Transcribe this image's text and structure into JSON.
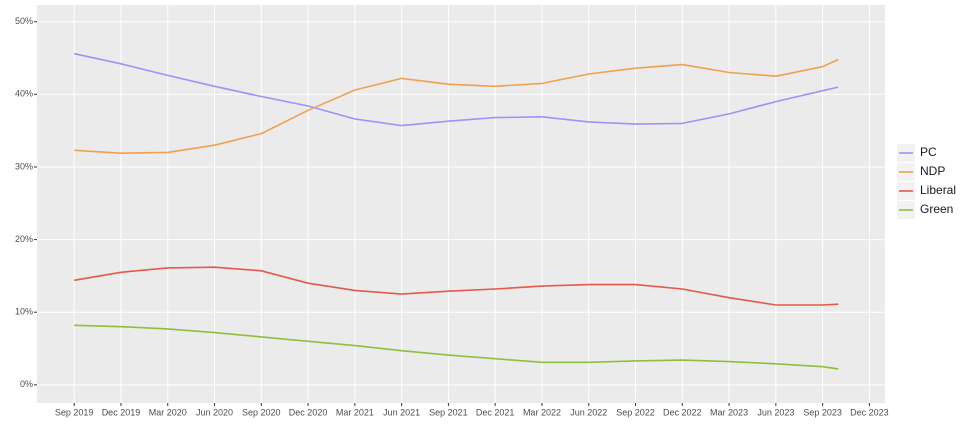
{
  "chart_data": {
    "type": "line",
    "x": [
      "2019-09",
      "2019-12",
      "2020-03",
      "2020-06",
      "2020-09",
      "2020-12",
      "2021-03",
      "2021-06",
      "2021-09",
      "2021-12",
      "2022-03",
      "2022-06",
      "2022-09",
      "2022-12",
      "2023-03",
      "2023-06",
      "2023-09",
      "2023-10"
    ],
    "series": [
      {
        "name": "PC",
        "color": "#9d93f8",
        "values": [
          45.6,
          44.2,
          42.6,
          41.1,
          39.7,
          38.4,
          36.6,
          35.7,
          36.3,
          36.8,
          36.9,
          36.2,
          35.9,
          36.0,
          37.3,
          39.0,
          40.5,
          41.0
        ]
      },
      {
        "name": "NDP",
        "color": "#f0a150",
        "values": [
          32.3,
          31.9,
          32.0,
          33.0,
          34.6,
          37.8,
          40.6,
          42.2,
          41.4,
          41.1,
          41.5,
          42.8,
          43.6,
          44.1,
          43.0,
          42.5,
          43.8,
          44.8
        ]
      },
      {
        "name": "Liberal",
        "color": "#e5584c",
        "values": [
          14.4,
          15.5,
          16.1,
          16.2,
          15.7,
          14.0,
          13.0,
          12.5,
          12.9,
          13.2,
          13.6,
          13.8,
          13.8,
          13.2,
          12.0,
          11.0,
          11.0,
          11.1
        ]
      },
      {
        "name": "Green",
        "color": "#8dbf3e",
        "values": [
          8.2,
          8.0,
          7.7,
          7.2,
          6.6,
          6.0,
          5.4,
          4.7,
          4.1,
          3.6,
          3.1,
          3.1,
          3.3,
          3.4,
          3.2,
          2.9,
          2.5,
          2.2
        ]
      }
    ],
    "xlim": [
      "2019-07",
      "2024-01"
    ],
    "xticks": [
      {
        "value": "2019-09",
        "label": "Sep 2019"
      },
      {
        "value": "2019-12",
        "label": "Dec 2019"
      },
      {
        "value": "2020-03",
        "label": "Mar 2020"
      },
      {
        "value": "2020-06",
        "label": "Jun 2020"
      },
      {
        "value": "2020-09",
        "label": "Sep 2020"
      },
      {
        "value": "2020-12",
        "label": "Dec 2020"
      },
      {
        "value": "2021-03",
        "label": "Mar 2021"
      },
      {
        "value": "2021-06",
        "label": "Jun 2021"
      },
      {
        "value": "2021-09",
        "label": "Sep 2021"
      },
      {
        "value": "2021-12",
        "label": "Dec 2021"
      },
      {
        "value": "2022-03",
        "label": "Mar 2022"
      },
      {
        "value": "2022-06",
        "label": "Jun 2022"
      },
      {
        "value": "2022-09",
        "label": "Sep 2022"
      },
      {
        "value": "2022-12",
        "label": "Dec 2022"
      },
      {
        "value": "2023-03",
        "label": "Mar 2023"
      },
      {
        "value": "2023-06",
        "label": "Jun 2023"
      },
      {
        "value": "2023-09",
        "label": "Sep 2023"
      },
      {
        "value": "2023-12",
        "label": "Dec 2023"
      }
    ],
    "ylim": [
      -2.5,
      52.3
    ],
    "yticks": [
      {
        "value": 0,
        "label": "0%"
      },
      {
        "value": 10,
        "label": "10%"
      },
      {
        "value": 20,
        "label": "20%"
      },
      {
        "value": 30,
        "label": "30%"
      },
      {
        "value": 40,
        "label": "40%"
      },
      {
        "value": 50,
        "label": "50%"
      }
    ],
    "grid": true,
    "legend": "right"
  }
}
